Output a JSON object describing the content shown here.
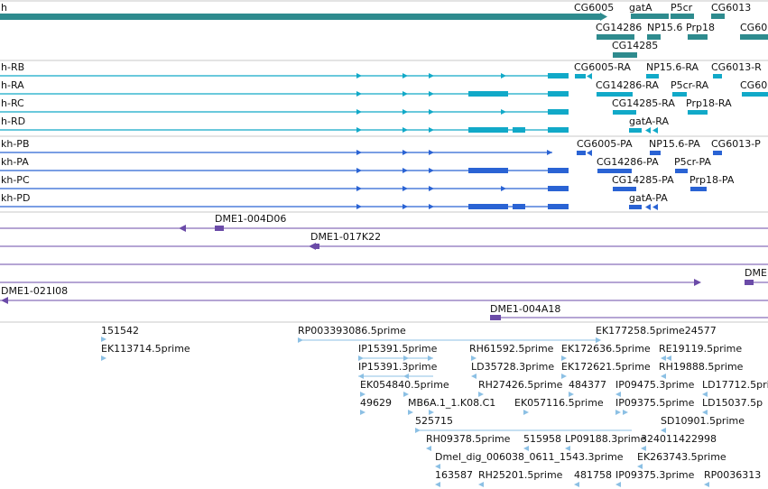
{
  "colors": {
    "gene": "#2e8b8e",
    "transcript": "#11a9c8",
    "protein": "#2a63d4",
    "clone": "#6b4ba8",
    "est": "#8cc0e4",
    "divider": "#c8c8c8"
  },
  "tracks": {
    "genes": {
      "left_label": "h",
      "labels": [
        "CG6005",
        "gatA",
        "P5cr",
        "CG6013",
        "CG14286",
        "NP15.6",
        "Prp18",
        "CG60",
        "CG14285"
      ]
    },
    "transcripts": {
      "left_labels": [
        "h-RB",
        "h-RA",
        "h-RC",
        "h-RD"
      ],
      "labels": [
        "CG6005-RA",
        "NP15.6-RA",
        "CG6013-R",
        "CG14286-RA",
        "P5cr-RA",
        "CG60",
        "CG14285-RA",
        "Prp18-RA",
        "gatA-RA"
      ]
    },
    "proteins": {
      "left_labels": [
        "kh-PB",
        "kh-PA",
        "kh-PC",
        "kh-PD"
      ],
      "labels": [
        "CG6005-PA",
        "NP15.6-PA",
        "CG6013-P",
        "CG14286-PA",
        "P5cr-PA",
        "CG14285-PA",
        "Prp18-PA",
        "gatA-PA"
      ]
    },
    "clones": {
      "labels": [
        "DME1-004D06",
        "DME1-017K22",
        "DME",
        "DME1-021I08",
        "DME1-004A18"
      ]
    },
    "ests": {
      "labels": [
        "151542",
        "RP003393086.5prime",
        "EK177258.5prime24577",
        "EK113714.5prime",
        "IP15391.5prime",
        "RH61592.5prime",
        "EK172636.5prime",
        "RE19119.5prime",
        "IP15391.3prime",
        "LD35728.3prime",
        "EK172621.5prime",
        "RH19888.5prime",
        "EK054840.5prime",
        "RH27426.5prime",
        "484377",
        "IP09475.3prime",
        "LD17712.5pri",
        "49629",
        "MB6A.1_1.K08.C1",
        "EK057116.5prime",
        "IP09375.5prime",
        "LD15037.5p",
        "525715",
        "SD10901.5prime",
        "RH09378.5prime",
        "515958",
        "LP09188.3prime",
        "324011422998",
        "Dmel_dig_006038_0611_1543.3prime",
        "EK263743.5prime",
        "163587",
        "RH25201.5prime",
        "481758",
        "IP09375.3prime",
        "RP0036313"
      ]
    }
  }
}
